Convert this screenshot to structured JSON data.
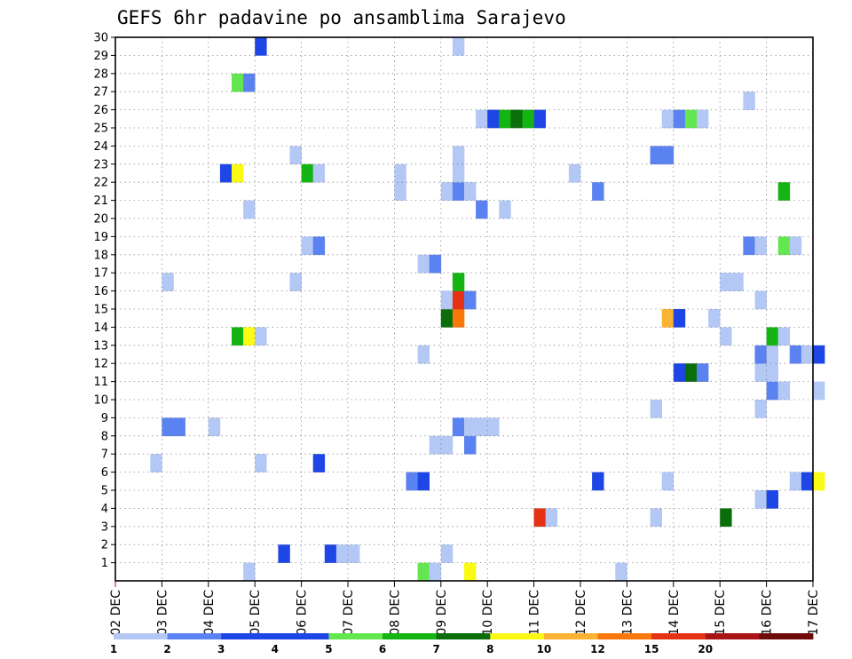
{
  "chart_data": {
    "type": "heatmap",
    "title": "GEFS 6hr padavine po ansamblima Sarajevo",
    "x_dates": [
      "02 DEC",
      "03 DEC",
      "04 DEC",
      "05 DEC",
      "06 DEC",
      "07 DEC",
      "08 DEC",
      "09 DEC",
      "10 DEC",
      "11 DEC",
      "12 DEC",
      "13 DEC",
      "14 DEC",
      "15 DEC",
      "16 DEC",
      "17 DEC"
    ],
    "y_ticks": [
      "1",
      "2",
      "3",
      "4",
      "5",
      "6",
      "7",
      "8",
      "9",
      "10",
      "11",
      "12",
      "13",
      "14",
      "15",
      "16",
      "17",
      "18",
      "19",
      "20",
      "21",
      "22",
      "23",
      "24",
      "25",
      "26",
      "27",
      "28",
      "29",
      "30"
    ],
    "grid": true,
    "legend": {
      "placement": "bottom",
      "labels": [
        "1",
        "2",
        "3",
        "4",
        "5",
        "6",
        "7",
        "8",
        "10",
        "12",
        "15",
        "20"
      ],
      "colors": [
        "#b4c8f5",
        "#5a82f0",
        "#1e46e6",
        "#1e46e6",
        "#64e650",
        "#14b414",
        "#0a6e0a",
        "#fafa14",
        "#fab432",
        "#fa780a",
        "#e63214",
        "#aa1414",
        "#6e0a0a"
      ]
    },
    "levels": {
      "1": "#b4c8f5",
      "2": "#5a82f0",
      "3": "#1e46e6",
      "5": "#64e650",
      "6": "#14b414",
      "7": "#0a6e0a",
      "8": "#fafa14",
      "10": "#fab432",
      "12": "#fa780a",
      "14": "#e63214",
      "15": "#aa1414"
    },
    "cells": [
      [
        "04 DEC 18Z",
        0,
        1
      ],
      [
        "05 DEC 12Z",
        1,
        3
      ],
      [
        "06 DEC 12Z",
        1,
        3
      ],
      [
        "06 DEC 18Z",
        1,
        1
      ],
      [
        "07 DEC 00Z",
        1,
        1
      ],
      [
        "09 DEC 00Z",
        1,
        1
      ],
      [
        "08 DEC 12Z",
        0,
        5
      ],
      [
        "08 DEC 18Z",
        0,
        1
      ],
      [
        "09 DEC 12Z",
        0,
        8
      ],
      [
        "12 DEC 18Z",
        0,
        1
      ],
      [
        "11 DEC 00Z",
        3,
        14
      ],
      [
        "11 DEC 06Z",
        3,
        1
      ],
      [
        "13 DEC 12Z",
        3,
        1
      ],
      [
        "15 DEC 00Z",
        3,
        7
      ],
      [
        "15 DEC 18Z",
        4,
        1
      ],
      [
        "16 DEC 00Z",
        4,
        3
      ],
      [
        "08 DEC 06Z",
        5,
        2
      ],
      [
        "08 DEC 12Z",
        5,
        3
      ],
      [
        "12 DEC 06Z",
        5,
        3
      ],
      [
        "13 DEC 18Z",
        5,
        1
      ],
      [
        "16 DEC 12Z",
        5,
        1
      ],
      [
        "16 DEC 18Z",
        5,
        3
      ],
      [
        "17 DEC 00Z",
        5,
        8
      ],
      [
        "02 DEC 18Z",
        6,
        1
      ],
      [
        "05 DEC 00Z",
        6,
        1
      ],
      [
        "06 DEC 06Z",
        6,
        3
      ],
      [
        "08 DEC 18Z",
        7,
        1
      ],
      [
        "09 DEC 00Z",
        7,
        1
      ],
      [
        "09 DEC 12Z",
        7,
        2
      ],
      [
        "03 DEC 00Z",
        8,
        2
      ],
      [
        "03 DEC 06Z",
        8,
        2
      ],
      [
        "04 DEC 00Z",
        8,
        1
      ],
      [
        "09 DEC 06Z",
        8,
        2
      ],
      [
        "09 DEC 12Z",
        8,
        1
      ],
      [
        "09 DEC 18Z",
        8,
        1
      ],
      [
        "10 DEC 00Z",
        8,
        1
      ],
      [
        "13 DEC 12Z",
        9,
        1
      ],
      [
        "15 DEC 18Z",
        9,
        1
      ],
      [
        "16 DEC 00Z",
        10,
        2
      ],
      [
        "16 DEC 06Z",
        10,
        1
      ],
      [
        "17 DEC 00Z",
        10,
        1
      ],
      [
        "14 DEC 00Z",
        11,
        3
      ],
      [
        "14 DEC 06Z",
        11,
        7
      ],
      [
        "14 DEC 12Z",
        11,
        2
      ],
      [
        "15 DEC 18Z",
        11,
        1
      ],
      [
        "16 DEC 00Z",
        11,
        1
      ],
      [
        "08 DEC 12Z",
        12,
        1
      ],
      [
        "15 DEC 18Z",
        12,
        2
      ],
      [
        "16 DEC 00Z",
        12,
        1
      ],
      [
        "16 DEC 12Z",
        12,
        2
      ],
      [
        "16 DEC 18Z",
        12,
        1
      ],
      [
        "17 DEC 00Z",
        12,
        3
      ],
      [
        "04 DEC 12Z",
        13,
        6
      ],
      [
        "04 DEC 18Z",
        13,
        8
      ],
      [
        "05 DEC 00Z",
        13,
        1
      ],
      [
        "15 DEC 00Z",
        13,
        1
      ],
      [
        "16 DEC 00Z",
        13,
        6
      ],
      [
        "16 DEC 06Z",
        13,
        1
      ],
      [
        "09 DEC 00Z",
        14,
        7
      ],
      [
        "09 DEC 06Z",
        14,
        12
      ],
      [
        "13 DEC 18Z",
        14,
        10
      ],
      [
        "14 DEC 00Z",
        14,
        3
      ],
      [
        "14 DEC 18Z",
        14,
        1
      ],
      [
        "09 DEC 00Z",
        15,
        1
      ],
      [
        "09 DEC 06Z",
        15,
        14
      ],
      [
        "09 DEC 12Z",
        15,
        2
      ],
      [
        "15 DEC 18Z",
        15,
        1
      ],
      [
        "03 DEC 00Z",
        16,
        1
      ],
      [
        "05 DEC 18Z",
        16,
        1
      ],
      [
        "09 DEC 06Z",
        16,
        6
      ],
      [
        "15 DEC 00Z",
        16,
        1
      ],
      [
        "15 DEC 06Z",
        16,
        1
      ],
      [
        "08 DEC 12Z",
        17,
        1
      ],
      [
        "08 DEC 18Z",
        17,
        2
      ],
      [
        "06 DEC 00Z",
        18,
        1
      ],
      [
        "06 DEC 06Z",
        18,
        2
      ],
      [
        "15 DEC 12Z",
        18,
        2
      ],
      [
        "15 DEC 18Z",
        18,
        1
      ],
      [
        "16 DEC 06Z",
        18,
        5
      ],
      [
        "16 DEC 12Z",
        18,
        1
      ],
      [
        "04 DEC 18Z",
        20,
        1
      ],
      [
        "09 DEC 18Z",
        20,
        2
      ],
      [
        "10 DEC 06Z",
        20,
        1
      ],
      [
        "08 DEC 00Z",
        21,
        1
      ],
      [
        "09 DEC 00Z",
        21,
        1
      ],
      [
        "09 DEC 06Z",
        21,
        2
      ],
      [
        "09 DEC 12Z",
        21,
        1
      ],
      [
        "12 DEC 06Z",
        21,
        2
      ],
      [
        "16 DEC 06Z",
        21,
        6
      ],
      [
        "04 DEC 06Z",
        22,
        3
      ],
      [
        "04 DEC 12Z",
        22,
        8
      ],
      [
        "06 DEC 00Z",
        22,
        6
      ],
      [
        "06 DEC 06Z",
        22,
        1
      ],
      [
        "08 DEC 00Z",
        22,
        1
      ],
      [
        "09 DEC 06Z",
        22,
        1
      ],
      [
        "11 DEC 18Z",
        22,
        1
      ],
      [
        "05 DEC 18Z",
        23,
        1
      ],
      [
        "09 DEC 06Z",
        23,
        1
      ],
      [
        "13 DEC 12Z",
        23,
        2
      ],
      [
        "13 DEC 18Z",
        23,
        2
      ],
      [
        "09 DEC 18Z",
        25,
        1
      ],
      [
        "10 DEC 00Z",
        25,
        3
      ],
      [
        "10 DEC 06Z",
        25,
        6
      ],
      [
        "10 DEC 12Z",
        25,
        7
      ],
      [
        "10 DEC 18Z",
        25,
        6
      ],
      [
        "11 DEC 00Z",
        25,
        3
      ],
      [
        "13 DEC 18Z",
        25,
        1
      ],
      [
        "14 DEC 00Z",
        25,
        2
      ],
      [
        "14 DEC 06Z",
        25,
        5
      ],
      [
        "14 DEC 12Z",
        25,
        1
      ],
      [
        "15 DEC 12Z",
        26,
        1
      ],
      [
        "04 DEC 12Z",
        27,
        5
      ],
      [
        "04 DEC 18Z",
        27,
        2
      ],
      [
        "05 DEC 00Z",
        29,
        3
      ],
      [
        "09 DEC 06Z",
        29,
        1
      ]
    ]
  }
}
